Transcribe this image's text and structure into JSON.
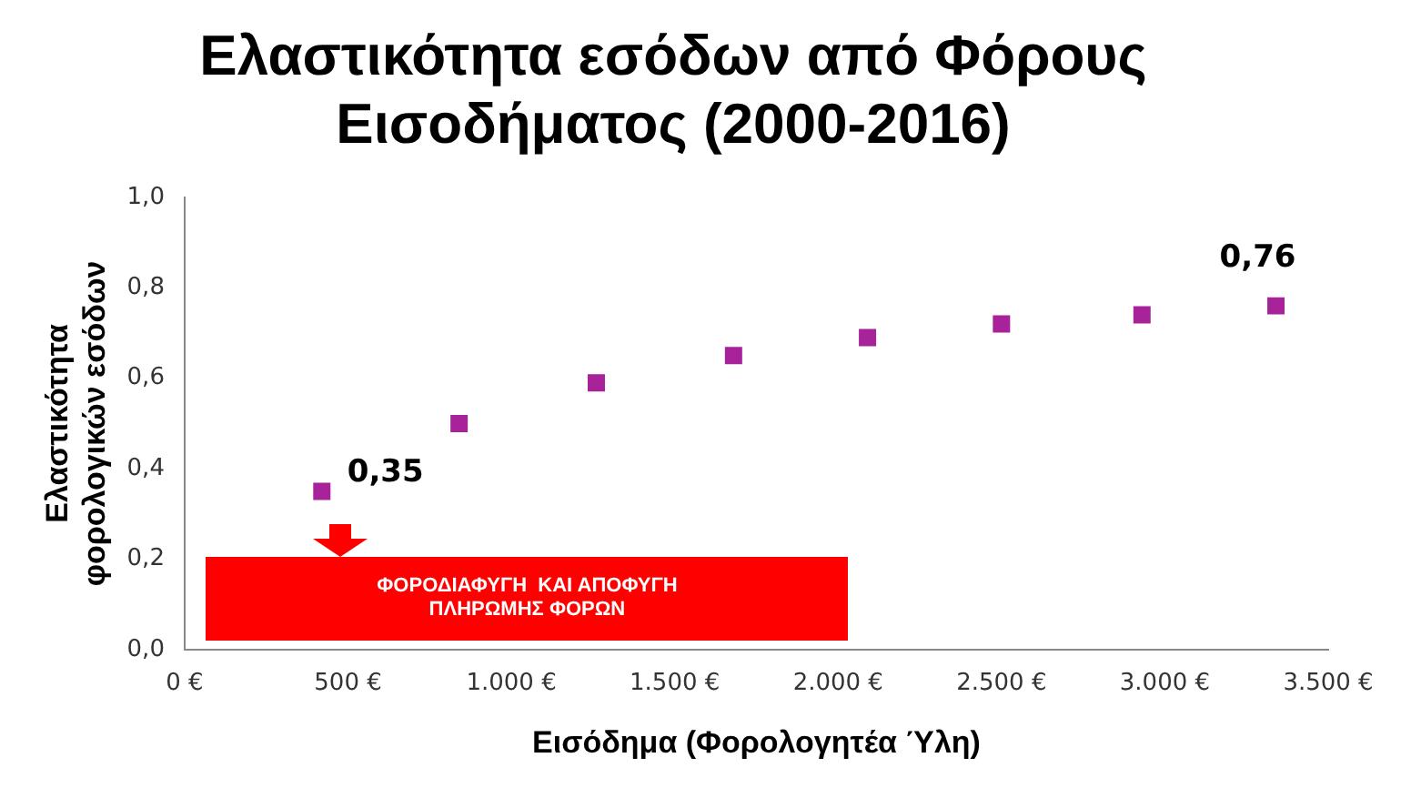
{
  "chart_data": {
    "type": "scatter",
    "title": "Ελαστικότητα εσόδων από Φόρους\nΕισοδήματος (2000-2016)",
    "xlabel": "Εισόδημα (Φορολογητέα Ύλη)",
    "ylabel": "Ελαστικότητα\nφορολογικών εσόδων",
    "x": [
      420,
      840,
      1260,
      1680,
      2090,
      2500,
      2930,
      3340
    ],
    "series": [
      {
        "color": "#a8229a",
        "values": [
          0.35,
          0.5,
          0.59,
          0.65,
          0.69,
          0.72,
          0.74,
          0.76
        ],
        "value_labels": [
          "0,35",
          null,
          null,
          null,
          null,
          null,
          null,
          "0,76"
        ]
      }
    ],
    "xlim": [
      0,
      3500
    ],
    "xticks": [
      {
        "value": 0,
        "label": "0 €"
      },
      {
        "value": 500,
        "label": "500 €"
      },
      {
        "value": 1000,
        "label": "1.000 €"
      },
      {
        "value": 1500,
        "label": "1.500 €"
      },
      {
        "value": 2000,
        "label": "2.000 €"
      },
      {
        "value": 2500,
        "label": "2.500 €"
      },
      {
        "value": 3000,
        "label": "3.000 €"
      },
      {
        "value": 3500,
        "label": "3.500 €"
      }
    ],
    "ylim": [
      0,
      1
    ],
    "yticks": [
      {
        "value": 0,
        "label": "0,0"
      },
      {
        "value": 0.2,
        "label": "0,2"
      },
      {
        "value": 0.4,
        "label": "0,4"
      },
      {
        "value": 0.6,
        "label": "0,6"
      },
      {
        "value": 0.8,
        "label": "0,8"
      },
      {
        "value": 1,
        "label": "1,0"
      }
    ],
    "annotations": [
      "ΦΟΡΟΔΙΑΦΥΓΗ  ΚΑΙ ΑΠΟΦΥΓΗ\nΠΛΗΡΩΜΗΣ ΦΟΡΩΝ"
    ],
    "grid": false,
    "legend": false,
    "marker": "square"
  }
}
